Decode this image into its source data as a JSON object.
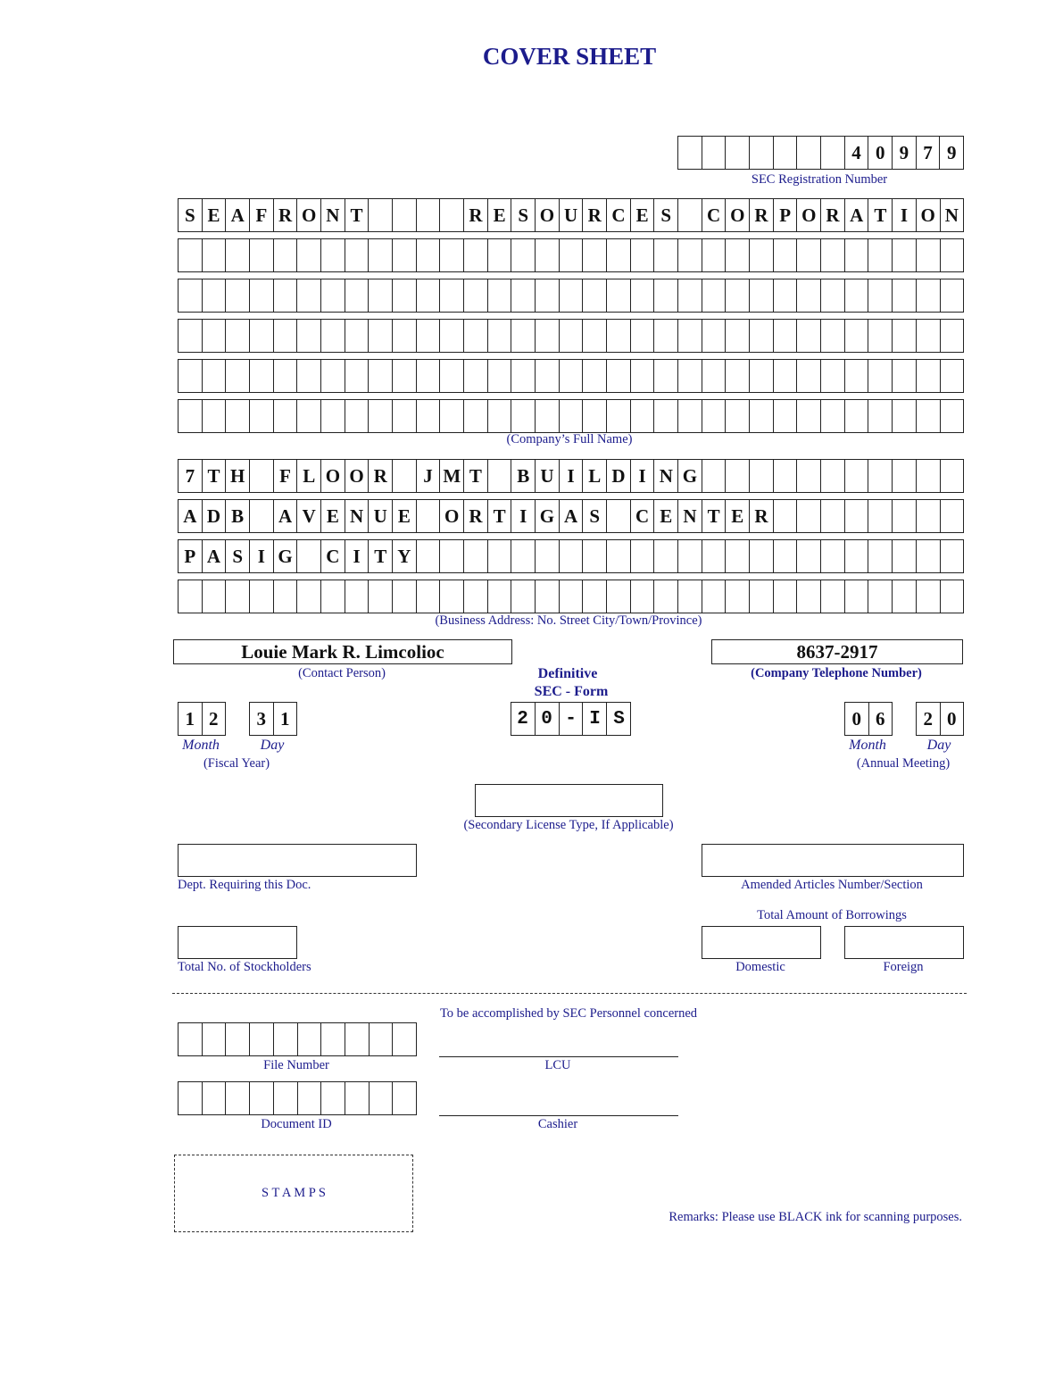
{
  "title": "COVER SHEET",
  "sec_registration": {
    "value": "       40979",
    "label": "SEC Registration Number"
  },
  "company_name": {
    "rows": [
      "SEAFRONT    RESOURCES CORPORATION",
      "",
      "",
      "",
      "",
      ""
    ],
    "label": "(Company’s Full Name)"
  },
  "business_address": {
    "rows": [
      "7TH FLOOR JMT BUILDING",
      "ADB AVENUE ORTIGAS CENTER",
      "PASIG CITY",
      ""
    ],
    "label": "(Business Address: No. Street City/Town/Province)"
  },
  "contact_person": {
    "value": "Louie Mark R. Limcolioc",
    "label": "(Contact Person)"
  },
  "telephone": {
    "value": "8637-2917",
    "label": "(Company Telephone Number)"
  },
  "form": {
    "label1": "Definitive",
    "label2": "SEC - Form",
    "value": "20-IS"
  },
  "fiscal_year": {
    "month": "12",
    "day": "31",
    "month_label": "Month",
    "day_label": "Day",
    "label": "(Fiscal Year)"
  },
  "annual_meeting": {
    "month": "06",
    "day": "20",
    "month_label": "Month",
    "day_label": "Day",
    "label": "(Annual Meeting)"
  },
  "secondary_license": {
    "value": "",
    "label": "(Secondary License Type, If Applicable)"
  },
  "dept": {
    "value": "",
    "label": "Dept. Requiring this Doc."
  },
  "amended_articles": {
    "value": "",
    "label": "Amended Articles Number/Section"
  },
  "borrowings": {
    "label": "Total Amount of Borrowings",
    "domestic_label": "Domestic",
    "foreign_label": "Foreign",
    "domestic": "",
    "foreign": ""
  },
  "stockholders": {
    "value": "",
    "label": "Total No. of Stockholders"
  },
  "sec_personnel": {
    "heading": "To be accomplished by SEC Personnel concerned",
    "file_number": {
      "value": "",
      "label": "File Number"
    },
    "lcu_label": "LCU",
    "document_id": {
      "value": "",
      "label": "Document ID"
    },
    "cashier_label": "Cashier",
    "stamps_label": "S T A M P S"
  },
  "remarks": "Remarks: Please use BLACK ink for scanning purposes."
}
